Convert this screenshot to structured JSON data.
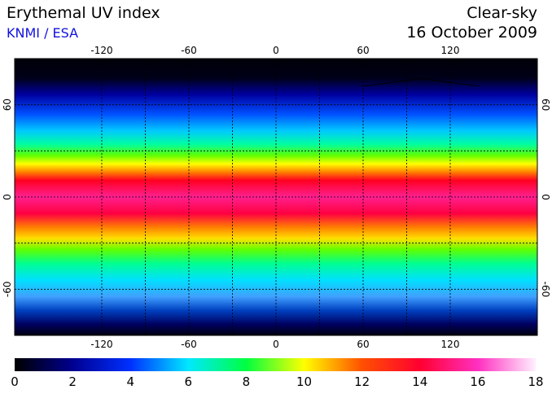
{
  "header": {
    "title": "Erythemal UV index",
    "source": "KNMI / ESA",
    "sky": "Clear-sky",
    "date": "16 October 2009"
  },
  "map": {
    "lon_lim": [
      -180,
      180
    ],
    "lat_lim": [
      -90,
      90
    ],
    "lon_ticks": [
      -120,
      -60,
      0,
      60,
      120
    ],
    "lat_ticks": [
      60,
      0,
      -60
    ],
    "grid": true
  },
  "colorbar": {
    "lim": [
      0,
      18
    ],
    "ticks": [
      0,
      2,
      4,
      6,
      8,
      10,
      12,
      14,
      16,
      18
    ],
    "colors": [
      "#000000",
      "#000090",
      "#0030ff",
      "#00e8ff",
      "#00ff40",
      "#ffff00",
      "#ff5000",
      "#ff0030",
      "#ff30c0",
      "#fff0ff"
    ]
  }
}
